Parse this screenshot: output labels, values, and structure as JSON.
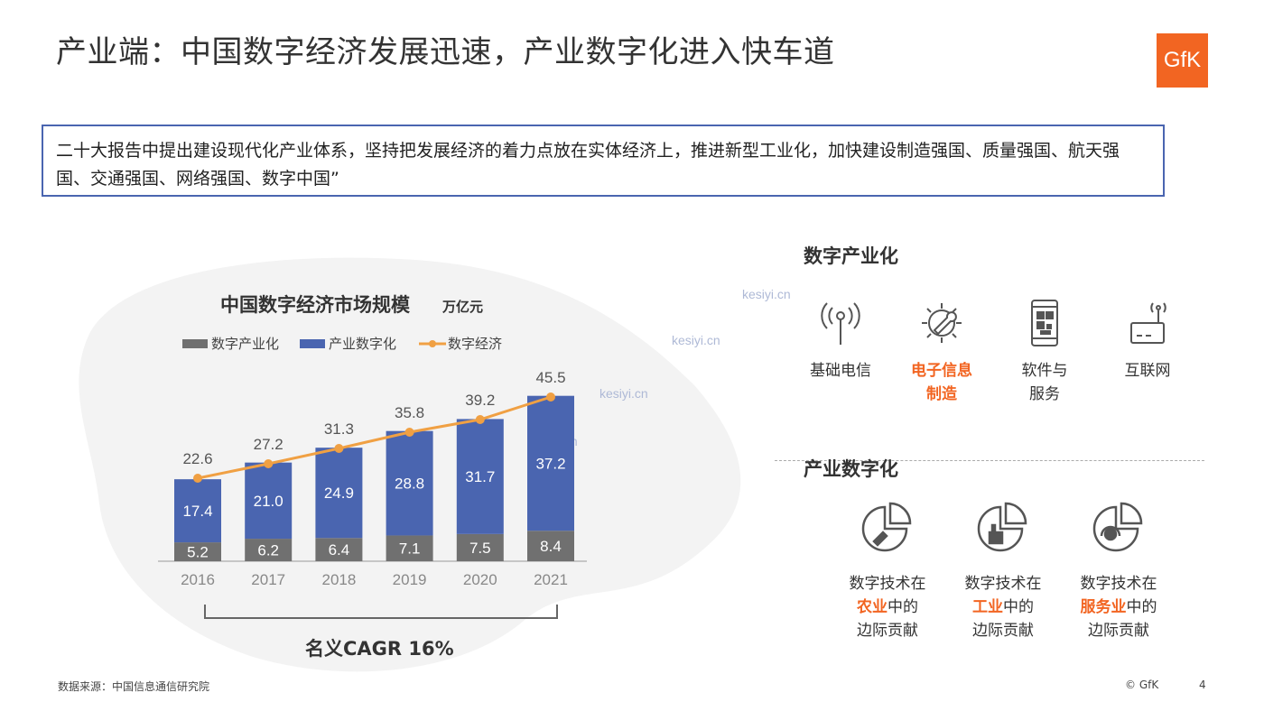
{
  "title": "产业端：中国数字经济发展迅速，产业数字化进入快车道",
  "logo": "GfK",
  "quote": "二十大报告中提出建设现代化产业体系，坚持把发展经济的着力点放在实体经济上，推进新型工业化，加快建设制造强国、质量强国、航天强国、交通强国、网络强国、数字中国”",
  "watermark": "kesiyi.cn",
  "colors": {
    "accent": "#f26522",
    "bar_blue": "#4a65b0",
    "bar_gray": "#707070",
    "line_orange": "#f0a043"
  },
  "chart_data": {
    "type": "bar",
    "title": "中国数字经济市场规模",
    "unit": "万亿元",
    "categories": [
      "2016",
      "2017",
      "2018",
      "2019",
      "2020",
      "2021"
    ],
    "series": [
      {
        "name": "数字产业化",
        "kind": "stacked-bar",
        "values": [
          5.2,
          6.2,
          6.4,
          7.1,
          7.5,
          8.4
        ]
      },
      {
        "name": "产业数字化",
        "kind": "stacked-bar",
        "values": [
          17.4,
          21.0,
          24.9,
          28.8,
          31.7,
          37.2
        ]
      },
      {
        "name": "数字经济",
        "kind": "line",
        "values": [
          22.6,
          27.2,
          31.3,
          35.8,
          39.2,
          45.5
        ]
      }
    ],
    "value_labels": {
      "数字产业化": [
        "5.2",
        "6.2",
        "6.4",
        "7.1",
        "7.5",
        "8.4"
      ],
      "产业数字化": [
        "17.4",
        "21.0",
        "24.9",
        "28.8",
        "31.7",
        "37.2"
      ],
      "数字经济": [
        "22.6",
        "27.2",
        "31.3",
        "35.8",
        "39.2",
        "45.5"
      ]
    },
    "legend_position": "top",
    "grid": false,
    "annotation": "名义CAGR 16%"
  },
  "digital_industrialization": {
    "heading": "数字产业化",
    "items": [
      {
        "icon": "antenna-icon",
        "label_lines": [
          "基础电信"
        ],
        "highlight": false
      },
      {
        "icon": "gear-wrench-icon",
        "label_lines": [
          "电子信息",
          "制造"
        ],
        "highlight": true
      },
      {
        "icon": "smartphone-qr-icon",
        "label_lines": [
          "软件与",
          "服务"
        ],
        "highlight": false
      },
      {
        "icon": "router-icon",
        "label_lines": [
          "互联网"
        ],
        "highlight": false
      }
    ]
  },
  "industrial_digitalization": {
    "heading": "产业数字化",
    "items": [
      {
        "icon": "pie-agriculture-icon",
        "line1": "数字技术在",
        "hl": "农业",
        "after": "中的",
        "line3": "边际贡献"
      },
      {
        "icon": "pie-industry-icon",
        "line1": "数字技术在",
        "hl": "工业",
        "after": "中的",
        "line3": "边际贡献"
      },
      {
        "icon": "pie-service-icon",
        "line1": "数字技术在",
        "hl": "服务业",
        "after": "中的",
        "line3": "边际贡献"
      }
    ]
  },
  "footer": {
    "source": "数据来源：中国信息通信研究院",
    "copyright": "© GfK",
    "page": "4"
  }
}
